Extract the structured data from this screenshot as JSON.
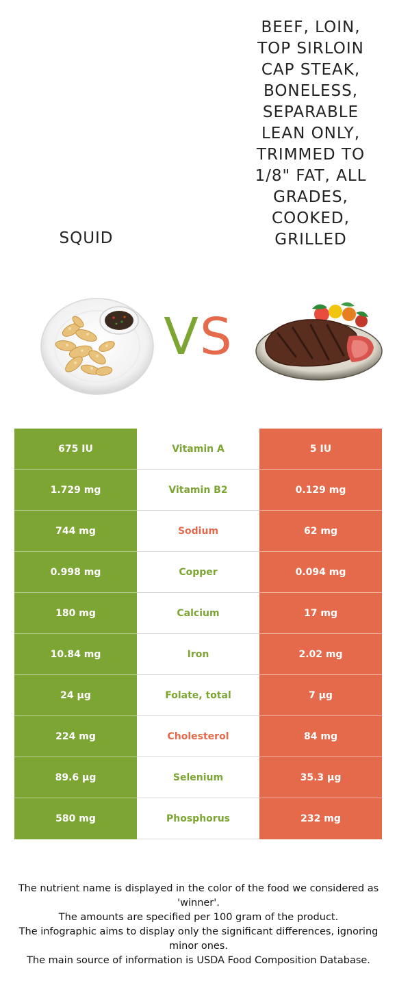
{
  "left_food": {
    "name": "Squid",
    "color": "#7da533",
    "image_icon": "fried-squid-plate-icon"
  },
  "right_food": {
    "name": "Beef, loin, top sirloin cap steak, boneless, separable lean only, trimmed to 1/8\" fat, all grades, cooked, grilled",
    "color": "#e56a4b",
    "image_icon": "grilled-steak-plate-icon"
  },
  "vs": {
    "v": "V",
    "s": "S"
  },
  "rows": [
    {
      "left": "675 IU",
      "nutrient": "Vitamin A",
      "right": "5 IU",
      "winner": "left"
    },
    {
      "left": "1.729 mg",
      "nutrient": "Vitamin B2",
      "right": "0.129 mg",
      "winner": "left"
    },
    {
      "left": "744 mg",
      "nutrient": "Sodium",
      "right": "62 mg",
      "winner": "right"
    },
    {
      "left": "0.998 mg",
      "nutrient": "Copper",
      "right": "0.094 mg",
      "winner": "left"
    },
    {
      "left": "180 mg",
      "nutrient": "Calcium",
      "right": "17 mg",
      "winner": "left"
    },
    {
      "left": "10.84 mg",
      "nutrient": "Iron",
      "right": "2.02 mg",
      "winner": "left"
    },
    {
      "left": "24 µg",
      "nutrient": "Folate, total",
      "right": "7 µg",
      "winner": "left"
    },
    {
      "left": "224 mg",
      "nutrient": "Cholesterol",
      "right": "84 mg",
      "winner": "right"
    },
    {
      "left": "89.6 µg",
      "nutrient": "Selenium",
      "right": "35.3 µg",
      "winner": "left"
    },
    {
      "left": "580 mg",
      "nutrient": "Phosphorus",
      "right": "232 mg",
      "winner": "left"
    }
  ],
  "footnote": [
    "The nutrient name is displayed in the color of the food we considered as 'winner'.",
    "The amounts are specified per 100 gram of the product.",
    "The infographic aims to display only the significant differences, ignoring minor ones.",
    "The main source of information is USDA Food Composition Database."
  ]
}
